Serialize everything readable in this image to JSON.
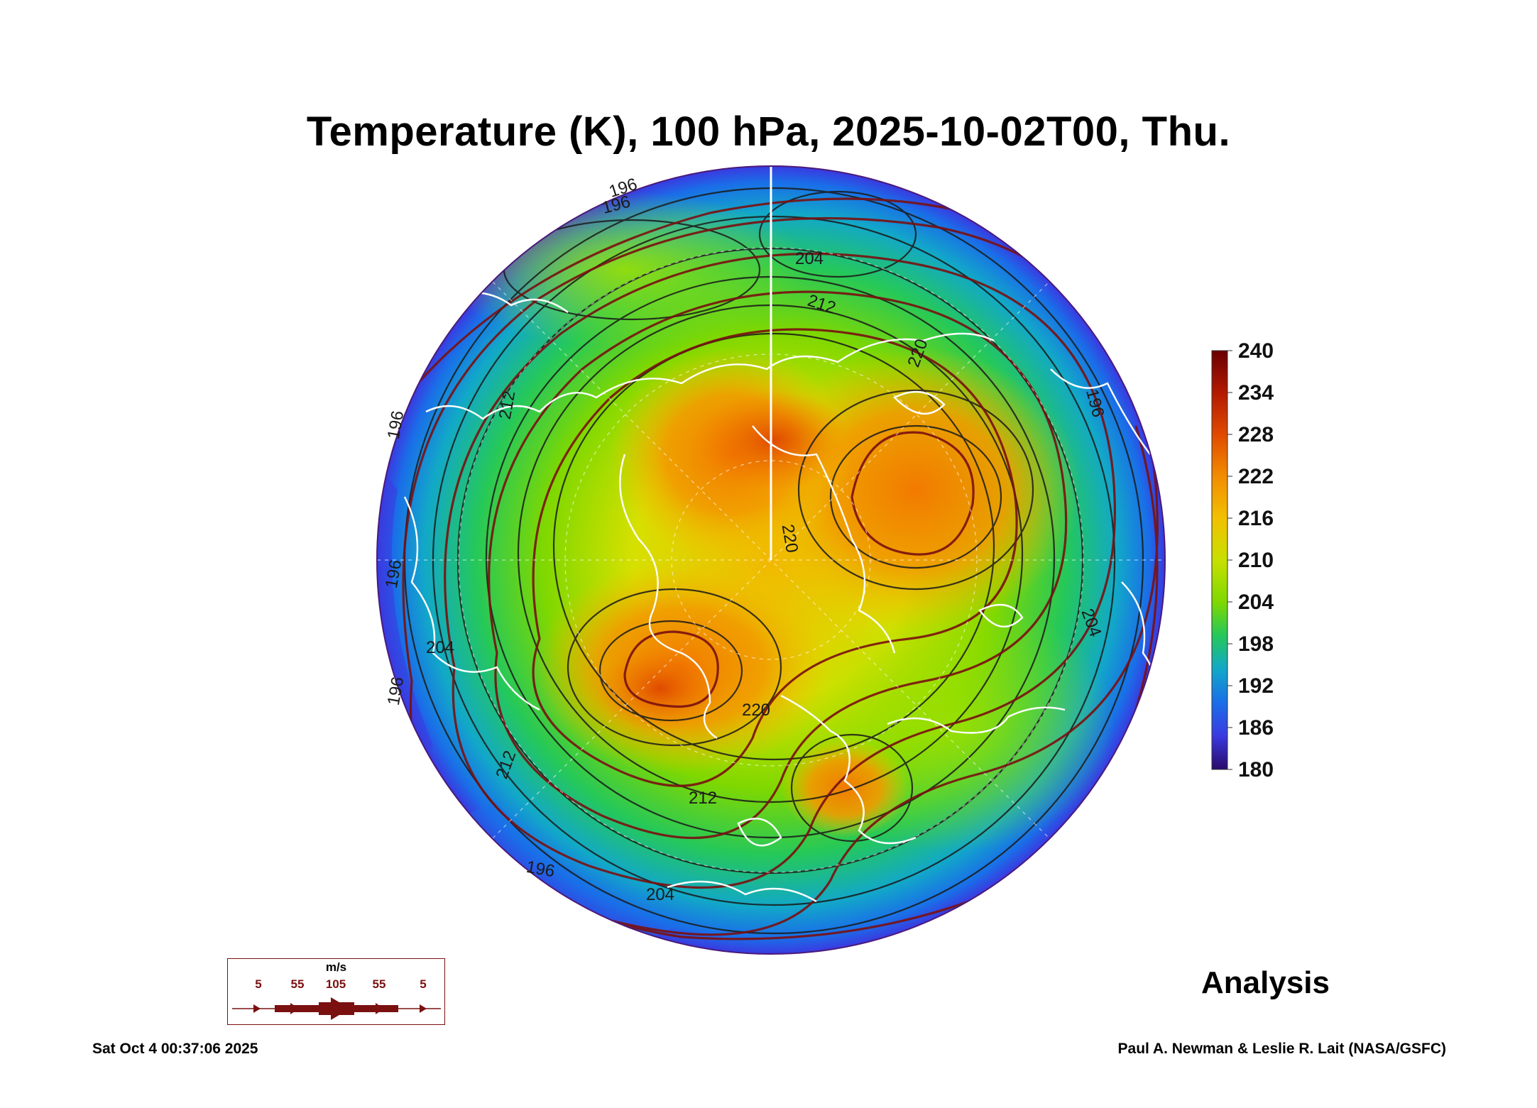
{
  "title": "Temperature (K), 100 hPa, 2025-10-02T00, Thu.",
  "colorbar": {
    "ticks": [
      "240",
      "234",
      "228",
      "222",
      "216",
      "210",
      "204",
      "198",
      "192",
      "186",
      "180"
    ],
    "colors": [
      "#6b0000",
      "#b21a00",
      "#e04a00",
      "#f28c00",
      "#f2c000",
      "#c8e000",
      "#7fd800",
      "#25c85a",
      "#12a8c8",
      "#1a6ee8",
      "#3a3ae0",
      "#4a1a9a"
    ]
  },
  "contour_labels": [
    "196",
    "196",
    "204",
    "212",
    "220",
    "196",
    "212",
    "196",
    "220",
    "196",
    "204",
    "204",
    "196",
    "196",
    "212",
    "204",
    "220",
    "212"
  ],
  "wind_legend": {
    "unit": "m/s",
    "speeds": [
      "5",
      "55",
      "105",
      "55",
      "5"
    ],
    "color": "#7a1010"
  },
  "label": "Analysis",
  "timestamp": "Sat Oct  4 00:37:06 2025",
  "credit": "Paul A. Newman & Leslie R. Lait (NASA/GSFC)"
}
